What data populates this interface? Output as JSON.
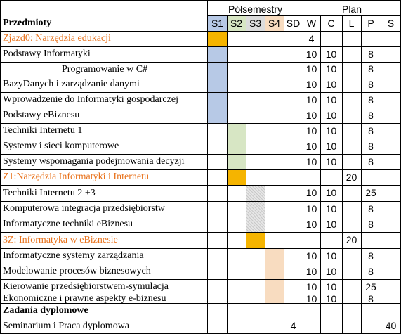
{
  "header": {
    "subjects_title": "Przedmioty",
    "group_semesters": "Półsemestry",
    "group_plan": "Plan",
    "semesters": [
      "S1",
      "S2",
      "S3",
      "S4",
      "SD"
    ],
    "plan_cols": [
      "W",
      "C",
      "L",
      "P",
      "S"
    ]
  },
  "semester_colors": {
    "S1": "#b7c9e6",
    "S2": "#d7e6c4",
    "S3": "#dcdcdc",
    "S4": "#f8dcc0",
    "zjazd": "#f5b400",
    "orange_text": "#e8711a"
  },
  "rows": [
    {
      "subject": "Zjazd0: Narzędzia edukacji",
      "style": "orange",
      "fill": {
        "col": 0,
        "color": "orange"
      },
      "sd": "",
      "plan": [
        "4",
        "",
        "",
        "",
        ""
      ]
    },
    {
      "subject": "Podstawy Informatyki",
      "style": "normal",
      "fill": {
        "col": 0,
        "color": "blue"
      },
      "sd": "",
      "plan": [
        "10",
        "10",
        "",
        "8",
        ""
      ]
    },
    {
      "subject": "Programowanie w C#",
      "style": "normal",
      "fill": {
        "col": 0,
        "color": "blue"
      },
      "sd": "",
      "plan": [
        "10",
        "10",
        "",
        "8",
        ""
      ]
    },
    {
      "subject": "BazyDanych i zarządzanie danymi",
      "style": "normal",
      "fill": {
        "col": 0,
        "color": "blue"
      },
      "sd": "",
      "plan": [
        "10",
        "10",
        "",
        "8",
        ""
      ]
    },
    {
      "subject": "Wprowadzenie do Informatyki gospodarczej",
      "style": "normal",
      "fill": {
        "col": 0,
        "color": "blue"
      },
      "sd": "",
      "plan": [
        "10",
        "10",
        "",
        "8",
        ""
      ]
    },
    {
      "subject": "Podstawy eBiznesu",
      "style": "normal",
      "fill": {
        "col": 0,
        "color": "blue"
      },
      "sd": "",
      "plan": [
        "10",
        "10",
        "",
        "8",
        ""
      ]
    },
    {
      "subject": "Techniki  Internetu 1",
      "style": "normal",
      "fill": {
        "col": 1,
        "color": "green"
      },
      "sd": "",
      "plan": [
        "10",
        "10",
        "",
        "8",
        ""
      ]
    },
    {
      "subject": "Systemy i sieci komputerowe",
      "style": "normal",
      "fill": {
        "col": 1,
        "color": "green"
      },
      "sd": "",
      "plan": [
        "10",
        "10",
        "",
        "8",
        ""
      ]
    },
    {
      "subject": "Systemy wspomagania podejmowania decyzji",
      "style": "normal",
      "fill": {
        "col": 1,
        "color": "green"
      },
      "sd": "",
      "plan": [
        "10",
        "10",
        "",
        "8",
        ""
      ]
    },
    {
      "subject": "Z1:Narzędzia Informatyki i Internetu",
      "style": "orange",
      "fill": {
        "col": 1,
        "color": "orange"
      },
      "sd": "",
      "plan": [
        "",
        "",
        "20",
        "",
        ""
      ]
    },
    {
      "subject": "Techniki  Internetu 2 +3",
      "style": "normal",
      "fill": {
        "col": 2,
        "color": "gray"
      },
      "sd": "",
      "plan": [
        "10",
        "10",
        "",
        "25",
        ""
      ]
    },
    {
      "subject": "Komputerowa integracja przedsiębiorstw",
      "style": "normal",
      "fill": {
        "col": 2,
        "color": "gray"
      },
      "sd": "",
      "plan": [
        "10",
        "10",
        "",
        "8",
        ""
      ]
    },
    {
      "subject": "Informatyczne techniki eBiznesu",
      "style": "normal",
      "fill": {
        "col": 2,
        "color": "gray"
      },
      "sd": "",
      "plan": [
        "10",
        "10",
        "",
        "8",
        ""
      ]
    },
    {
      "subject": "3Z: Informatyka w eBiznesie",
      "style": "orange",
      "fill": {
        "col": 2,
        "color": "orange"
      },
      "sd": "",
      "plan": [
        "",
        "",
        "20",
        "",
        ""
      ]
    },
    {
      "subject": "Informatyczne systemy zarządzania",
      "style": "normal",
      "fill": {
        "col": 3,
        "color": "peach"
      },
      "sd": "",
      "plan": [
        "10",
        "10",
        "",
        "8",
        ""
      ]
    },
    {
      "subject": "Modelowanie procesów biznesowych",
      "style": "normal",
      "fill": {
        "col": 3,
        "color": "peach"
      },
      "sd": "",
      "plan": [
        "10",
        "10",
        "",
        "8",
        ""
      ]
    },
    {
      "subject": "Kierowanie przedsiębiorstwem-symulacja",
      "style": "normal",
      "fill": {
        "col": 3,
        "color": "peach"
      },
      "sd": "",
      "plan": [
        "10",
        "10",
        "",
        "25",
        ""
      ]
    },
    {
      "subject": "Ekonomiczne i prawne aspekty e-biznesu",
      "style": "normal",
      "fill": {
        "col": 3,
        "color": "peach"
      },
      "sd": "",
      "plan": [
        "10",
        "10",
        "",
        "8",
        ""
      ]
    },
    {
      "subject": "Zadania dyplomowe",
      "style": "bold",
      "fill": null,
      "sd": "",
      "plan": [
        "",
        "",
        "",
        "",
        ""
      ]
    },
    {
      "subject": "Seminarium i Praca dyplomowa",
      "style": "normal",
      "fill": null,
      "sd": "4",
      "plan": [
        "",
        "",
        "",
        "",
        "40"
      ]
    }
  ]
}
